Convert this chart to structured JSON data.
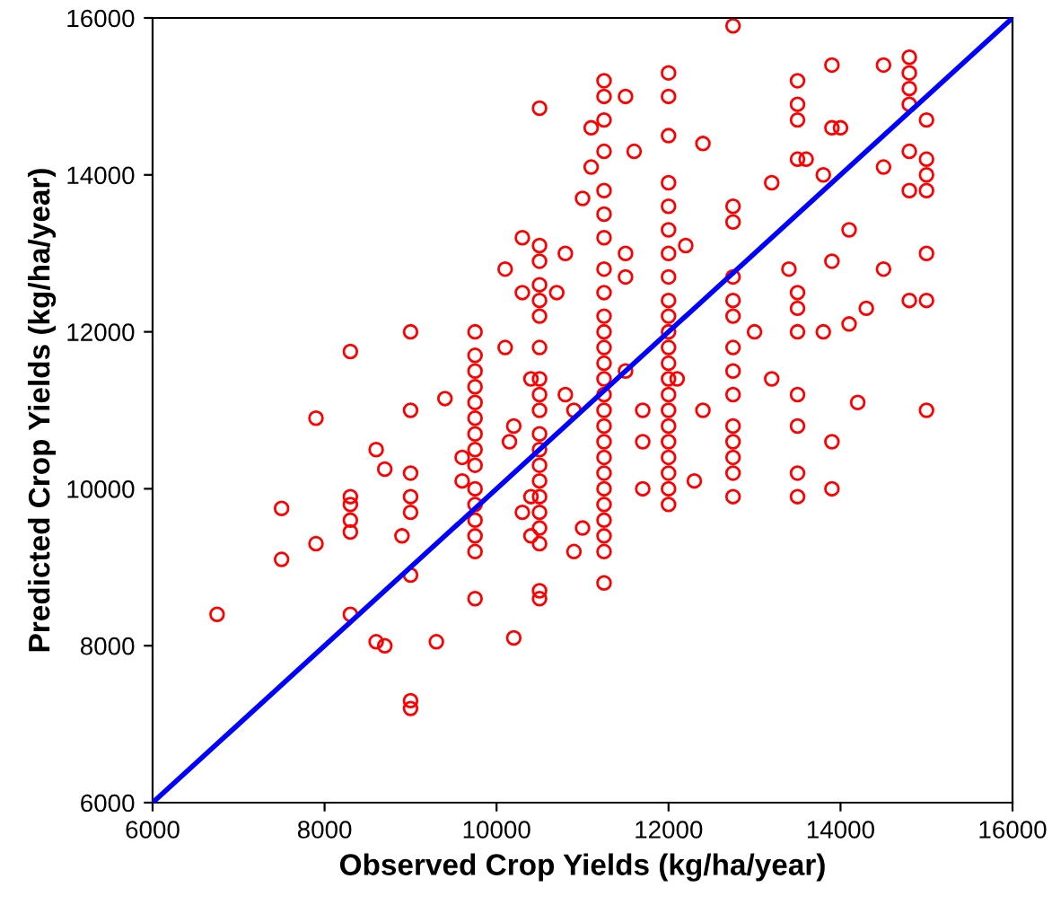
{
  "chart_data": {
    "type": "scatter",
    "xlabel": "Observed Crop Yields (kg/ha/year)",
    "ylabel": "Predicted Crop Yields (kg/ha/year)",
    "xlim": [
      6000,
      16000
    ],
    "ylim": [
      6000,
      16000
    ],
    "xticks": [
      6000,
      8000,
      10000,
      12000,
      14000,
      16000
    ],
    "yticks": [
      6000,
      8000,
      10000,
      12000,
      14000,
      16000
    ],
    "grid": false,
    "marker": "circle",
    "series": [
      {
        "color": "#ff0000",
        "x": [
          6750,
          7500,
          7500,
          7900,
          7900,
          8300,
          8300,
          8300,
          8300,
          8300,
          8300,
          8600,
          8600,
          8700,
          8700,
          8900,
          9000,
          9000,
          9000,
          9000,
          9000,
          9000,
          9000,
          9000,
          9300,
          9400,
          9600,
          9600,
          9750,
          9750,
          9750,
          9750,
          9750,
          9750,
          9750,
          9750,
          9750,
          9750,
          9750,
          9750,
          9750,
          9750,
          9750,
          10100,
          10100,
          10150,
          10200,
          10200,
          10300,
          10300,
          10300,
          10400,
          10400,
          10400,
          10500,
          10500,
          10500,
          10500,
          10500,
          10500,
          10500,
          10500,
          10500,
          10500,
          10500,
          10500,
          10500,
          10500,
          10500,
          10500,
          10500,
          10500,
          10500,
          10500,
          10700,
          10800,
          10800,
          10900,
          11000,
          10900,
          11250,
          11250,
          11250,
          11250,
          11250,
          11250,
          11250,
          11250,
          11250,
          11250,
          11250,
          11250,
          11250,
          11250,
          11250,
          11250,
          11250,
          11250,
          11250,
          11250,
          11250,
          11250,
          11250,
          11250,
          11250,
          11250,
          11100,
          11100,
          11000,
          11500,
          11600,
          11500,
          11500,
          11500,
          11700,
          11700,
          11700,
          12000,
          12000,
          12000,
          12000,
          12000,
          12000,
          12000,
          12000,
          12000,
          12000,
          12000,
          12000,
          12000,
          12000,
          12000,
          12000,
          12000,
          12000,
          12000,
          12000,
          12000,
          12000,
          12200,
          12100,
          12300,
          12400,
          12400,
          12750,
          12750,
          12750,
          12750,
          12750,
          12750,
          12750,
          12750,
          12750,
          12750,
          12750,
          12750,
          12750,
          12750,
          13000,
          13200,
          13200,
          13500,
          13500,
          13500,
          13500,
          13500,
          13500,
          13500,
          13500,
          13500,
          13500,
          13500,
          13400,
          13600,
          13800,
          13800,
          13900,
          13900,
          13900,
          13900,
          13900,
          14000,
          14100,
          14100,
          14200,
          14300,
          14500,
          14500,
          14500,
          14800,
          14800,
          14800,
          14800,
          14800,
          14800,
          14800,
          15000,
          15000,
          15000,
          15000,
          15000,
          15000,
          15000
        ],
        "values": [
          8400,
          9750,
          9100,
          10900,
          9300,
          11750,
          9900,
          9600,
          9800,
          9450,
          8400,
          10500,
          8050,
          10250,
          8000,
          9400,
          12000,
          11000,
          10200,
          9900,
          9700,
          8900,
          7300,
          7200,
          8050,
          11150,
          10100,
          10400,
          12000,
          11700,
          11500,
          11300,
          11100,
          10900,
          10700,
          10500,
          10300,
          10000,
          9800,
          9600,
          9400,
          9200,
          8600,
          12800,
          11800,
          10600,
          10800,
          8100,
          13200,
          12500,
          9700,
          9400,
          11400,
          9900,
          14850,
          13100,
          12900,
          12600,
          12400,
          12200,
          11800,
          11400,
          11200,
          11000,
          10700,
          10500,
          10300,
          10100,
          9900,
          9700,
          9500,
          9300,
          8700,
          8600,
          12500,
          13000,
          11200,
          11000,
          9500,
          9200,
          15200,
          15000,
          14700,
          14300,
          13800,
          13500,
          13200,
          12800,
          12500,
          12200,
          12000,
          11800,
          11600,
          11400,
          11200,
          11000,
          10800,
          10600,
          10400,
          10200,
          10000,
          9800,
          9600,
          9400,
          9200,
          8800,
          14600,
          14100,
          13700,
          15000,
          14300,
          13000,
          12700,
          11500,
          11000,
          10600,
          10000,
          15300,
          15000,
          14500,
          13900,
          13600,
          13300,
          13000,
          12700,
          12400,
          12200,
          12000,
          11800,
          11600,
          11400,
          11200,
          11000,
          10800,
          10600,
          10400,
          10200,
          10000,
          9800,
          13100,
          11400,
          10100,
          11000,
          14400,
          15900,
          13600,
          13400,
          12700,
          12400,
          12200,
          11800,
          11500,
          11200,
          10800,
          10600,
          10400,
          10200,
          9900,
          12000,
          11400,
          13900,
          15200,
          14900,
          14700,
          14200,
          12500,
          12300,
          12000,
          11200,
          10800,
          10200,
          9900,
          12800,
          14200,
          14000,
          12000,
          15400,
          14600,
          12900,
          10600,
          10000,
          14600,
          13300,
          12100,
          11100,
          12300,
          15400,
          12800,
          14100,
          15500,
          15300,
          15100,
          14900,
          14300,
          13800,
          12400,
          14700,
          14200,
          14000,
          13800,
          13000,
          12400,
          11000
        ]
      },
      {
        "type": "line",
        "color": "#0000ff",
        "marker": "none",
        "x": [
          6000,
          16000
        ],
        "values": [
          6000,
          16000
        ]
      }
    ]
  }
}
